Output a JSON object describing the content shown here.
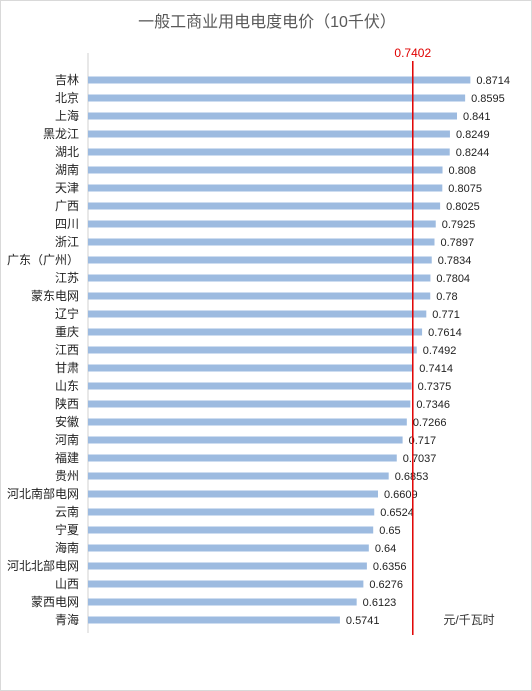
{
  "chart_data": {
    "type": "bar",
    "orientation": "horizontal",
    "title": "一般工商业用电电度电价（10千伏）",
    "unit": "元/千瓦时",
    "categories": [
      "吉林",
      "北京",
      "上海",
      "黑龙江",
      "湖北",
      "湖南",
      "天津",
      "广西",
      "四川",
      "浙江",
      "广东（广州）",
      "江苏",
      "蒙东电网",
      "辽宁",
      "重庆",
      "江西",
      "甘肃",
      "山东",
      "陕西",
      "安徽",
      "河南",
      "福建",
      "贵州",
      "河北南部电网",
      "云南",
      "宁夏",
      "海南",
      "河北北部电网",
      "山西",
      "蒙西电网",
      "青海"
    ],
    "values": [
      0.8714,
      0.8595,
      0.841,
      0.8249,
      0.8244,
      0.808,
      0.8075,
      0.8025,
      0.7925,
      0.7897,
      0.7834,
      0.7804,
      0.78,
      0.771,
      0.7614,
      0.7492,
      0.7414,
      0.7375,
      0.7346,
      0.7266,
      0.717,
      0.7037,
      0.6853,
      0.6609,
      0.6524,
      0.65,
      0.64,
      0.6356,
      0.6276,
      0.6123,
      0.5741
    ],
    "value_labels": [
      "0.8714",
      "0.8595",
      "0.841",
      "0.8249",
      "0.8244",
      "0.808",
      "0.8075",
      "0.8025",
      "0.7925",
      "0.7897",
      "0.7834",
      "0.7804",
      "0.78",
      "0.771",
      "0.7614",
      "0.7492",
      "0.7414",
      "0.7375",
      "0.7346",
      "0.7266",
      "0.717",
      "0.7037",
      "0.6853",
      "0.6609",
      "0.6524",
      "0.65",
      "0.64",
      "0.6356",
      "0.6276",
      "0.6123",
      "0.5741"
    ],
    "reference_line": {
      "value": 0.7402,
      "label": "0.7402",
      "color": "#e00000"
    },
    "bar_color": "#9dbbe0",
    "xlim": [
      0,
      0.98
    ],
    "grid": false,
    "legend": "none"
  }
}
